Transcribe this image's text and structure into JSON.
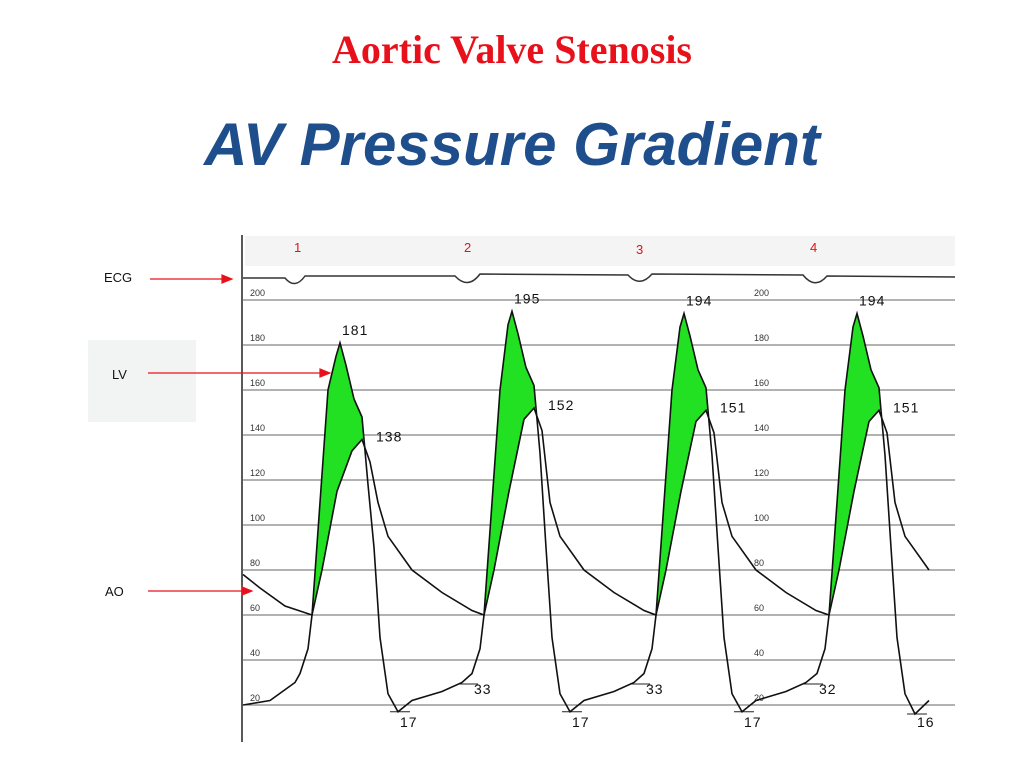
{
  "title": "Aortic Valve Stenosis",
  "subtitle": "AV Pressure Gradient",
  "figure": {
    "trace_labels": [
      "ECG",
      "LV",
      "AO"
    ],
    "beat_numbers": [
      "1",
      "2",
      "3",
      "4"
    ],
    "scale_labels": [
      "200",
      "180",
      "160",
      "140",
      "120",
      "100",
      "80",
      "60",
      "40",
      "20"
    ],
    "beats": [
      {
        "lv_peak": "181",
        "ao_peak": "138",
        "lv_min": "17"
      },
      {
        "lv_peak": "195",
        "ao_peak": "152",
        "lv_start": "33",
        "lv_min": "17"
      },
      {
        "lv_peak": "194",
        "ao_peak": "151",
        "lv_start": "33",
        "lv_min": "17"
      },
      {
        "lv_peak": "194",
        "ao_peak": "151",
        "lv_start": "32",
        "lv_min": "16"
      }
    ]
  }
}
